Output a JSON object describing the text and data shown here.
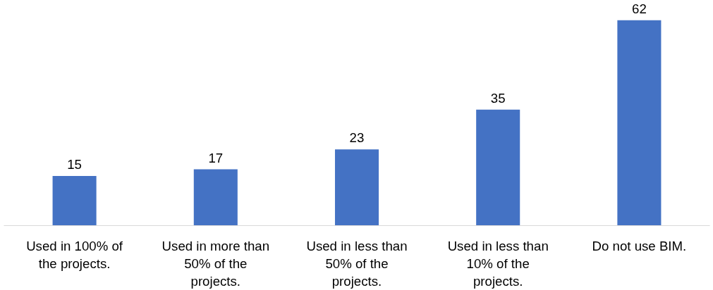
{
  "chart_data": {
    "type": "bar",
    "categories": [
      "Used in 100% of the projects.",
      "Used in more than 50% of the projects.",
      "Used in less than 50% of the projects.",
      "Used in less than 10% of the projects.",
      "Do not use BIM."
    ],
    "values": [
      15,
      17,
      23,
      35,
      62
    ],
    "color": "#4472c4",
    "data_labels": true,
    "grid": false
  }
}
